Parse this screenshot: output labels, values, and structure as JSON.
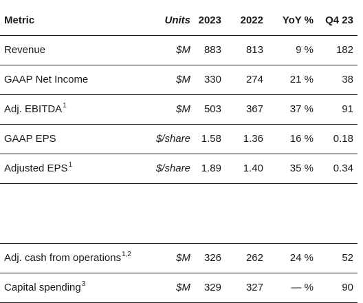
{
  "header": {
    "metric": "Metric",
    "units": "Units",
    "y2023": "2023",
    "y2022": "2022",
    "yoy": "YoY %",
    "q4": "Q4 23"
  },
  "rows": [
    {
      "metric": "Revenue",
      "sup": "",
      "units": "$M",
      "y2023": "883",
      "y2022": "813",
      "yoy": "9 %",
      "q4": "182"
    },
    {
      "metric": "GAAP Net Income",
      "sup": "",
      "units": "$M",
      "y2023": "330",
      "y2022": "274",
      "yoy": "21 %",
      "q4": "38"
    },
    {
      "metric": "Adj. EBITDA",
      "sup": "1",
      "units": "$M",
      "y2023": "503",
      "y2022": "367",
      "yoy": "37 %",
      "q4": "91"
    },
    {
      "metric": "GAAP EPS",
      "sup": "",
      "units": "$/share",
      "y2023": "1.58",
      "y2022": "1.36",
      "yoy": "16 %",
      "q4": "0.18"
    },
    {
      "metric": "Adjusted EPS",
      "sup": "1",
      "units": "$/share",
      "y2023": "1.89",
      "y2022": "1.40",
      "yoy": "35 %",
      "q4": "0.34"
    },
    {
      "metric": "Adj. cash from operations",
      "sup": "1,2",
      "units": "$M",
      "y2023": "326",
      "y2022": "262",
      "yoy": "24 %",
      "q4": "52"
    },
    {
      "metric": "Capital spending",
      "sup": "3",
      "units": "$M",
      "y2023": "329",
      "y2022": "327",
      "yoy": "— %",
      "q4": "90"
    }
  ]
}
